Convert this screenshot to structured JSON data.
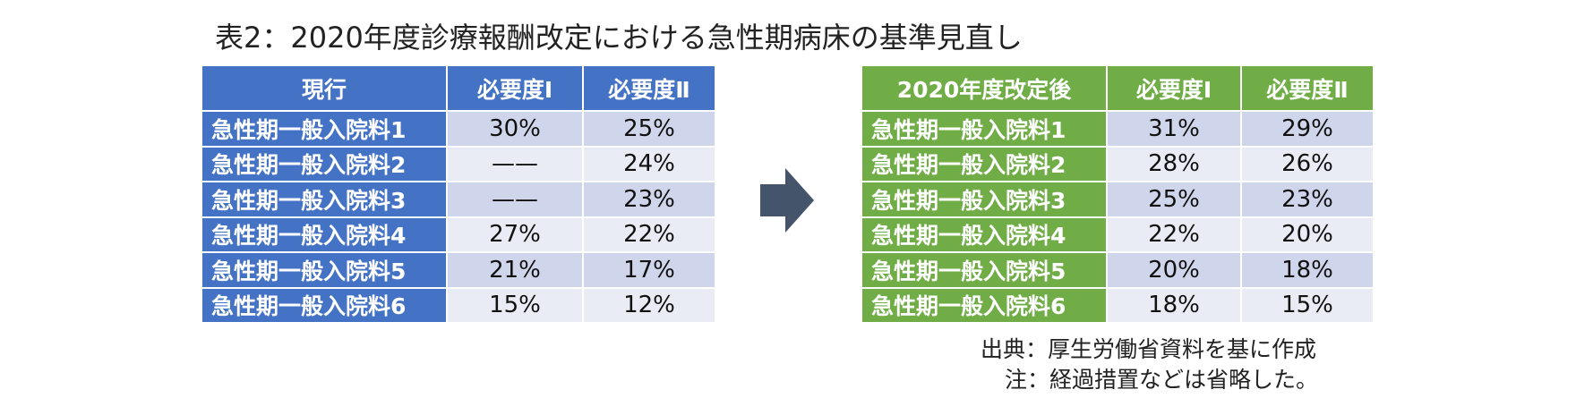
{
  "title": "表2：2020年度診療報酬改定における急性期病床の基準見直し",
  "current_table": {
    "headers": [
      "現行",
      "必要度Ⅰ",
      "必要度Ⅱ"
    ],
    "rows": [
      {
        "label": "急性期一般入院料1",
        "v1": "30%",
        "v2": "25%"
      },
      {
        "label": "急性期一般入院料2",
        "v1": "——",
        "v2": "24%"
      },
      {
        "label": "急性期一般入院料3",
        "v1": "——",
        "v2": "23%"
      },
      {
        "label": "急性期一般入院料4",
        "v1": "27%",
        "v2": "22%"
      },
      {
        "label": "急性期一般入院料5",
        "v1": "21%",
        "v2": "17%"
      },
      {
        "label": "急性期一般入院料6",
        "v1": "15%",
        "v2": "12%"
      }
    ]
  },
  "revised_table": {
    "headers": [
      "2020年度改定後",
      "必要度Ⅰ",
      "必要度Ⅱ"
    ],
    "rows": [
      {
        "label": "急性期一般入院料1",
        "v1": "31%",
        "v2": "29%"
      },
      {
        "label": "急性期一般入院料2",
        "v1": "28%",
        "v2": "26%"
      },
      {
        "label": "急性期一般入院料3",
        "v1": "25%",
        "v2": "23%"
      },
      {
        "label": "急性期一般入院料4",
        "v1": "22%",
        "v2": "20%"
      },
      {
        "label": "急性期一般入院料5",
        "v1": "20%",
        "v2": "18%"
      },
      {
        "label": "急性期一般入院料6",
        "v1": "18%",
        "v2": "15%"
      }
    ]
  },
  "arrow_icon": "right-arrow-icon",
  "colors": {
    "current_header": "#4472c4",
    "revised_header": "#70ad47",
    "cell_dark": "#cfd5ea",
    "cell_light": "#e9ebf5",
    "arrow": "#44546a"
  },
  "notes": {
    "source": "出典：厚生労働省資料を基に作成",
    "note": "注：経過措置などは省略した。"
  }
}
